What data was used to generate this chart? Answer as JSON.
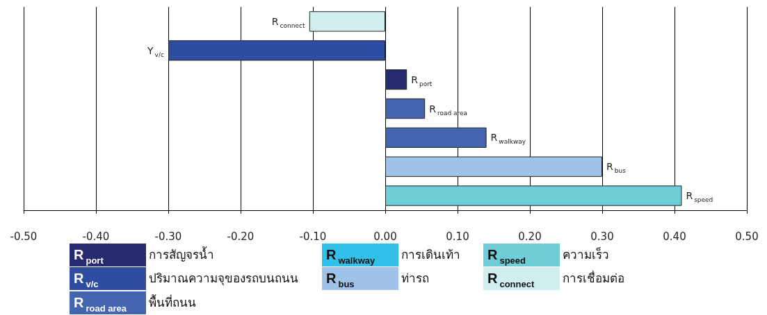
{
  "chart_data": {
    "type": "bar",
    "orientation": "horizontal",
    "categories": [
      null,
      null,
      null,
      null,
      null,
      null,
      null
    ],
    "value_labels": [
      "R$_{connect}$",
      "Y$_{v/c}$",
      "R$_{port}$",
      "R$_{road area}$",
      "R$_{walkway}$",
      "R$_{bus}$",
      "R$_{speed}$"
    ],
    "values": [
      -0.105,
      -0.3,
      0.03,
      0.055,
      0.14,
      0.3,
      0.41
    ],
    "colors": [
      "#d0edf0",
      "#2e4da0",
      "#262a6e",
      "#4365b0",
      "#4365b0",
      "#9fc3e8",
      "#6fcdd8"
    ],
    "xlim": [
      -0.5,
      0.5
    ],
    "xticks": [
      {
        "value": -0.5,
        "label": "-0.50"
      },
      {
        "value": -0.4,
        "label": "-0.40"
      },
      {
        "value": -0.3,
        "label": "-0.30"
      },
      {
        "value": -0.2,
        "label": "-0.20"
      },
      {
        "value": -0.1,
        "label": "-0.10"
      },
      {
        "value": 0,
        "label": "0.00"
      },
      {
        "value": 0.1,
        "label": "0.10"
      },
      {
        "value": 0.2,
        "label": "0.20"
      },
      {
        "value": 0.3,
        "label": "0.30"
      },
      {
        "value": 0.4,
        "label": "0.40"
      },
      {
        "value": 0.5,
        "label": "0.50"
      }
    ],
    "grid": "x",
    "tick_labels": "x",
    "annotations": [
      "R$_{port}$ การสัญจรน้ำ",
      "R$_{v/c}$ ปริมาณความจุของรถบนถนน",
      "R$_{road area}$ พื้นที่ถนน",
      "R$_{walkway}$ การเดินเท้า",
      "R$_{bus}$ ท่ารถ",
      "R$_{speed}$ ความเร็ว",
      "R$_{connect}$ การเชื่อมต่อ"
    ]
  }
}
